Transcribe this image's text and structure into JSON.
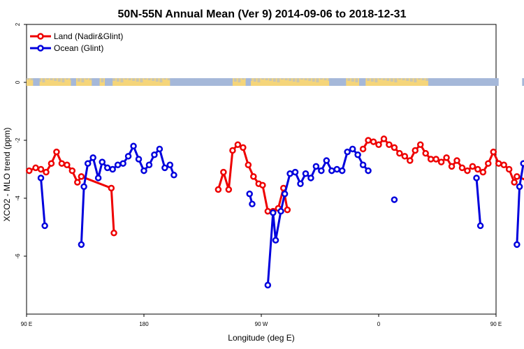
{
  "chart_data": {
    "type": "line",
    "title": "50N-55N Annual Mean (Ver 9)   2014-09-06 to 2018-12-31",
    "xlabel": "Longitude (deg E)",
    "ylabel": "XCO2 - MLO trend (ppm)",
    "xlim": [
      90,
      450
    ],
    "ylim": [
      -8,
      2
    ],
    "x_ticks": [
      {
        "value": 90,
        "label": "90 E"
      },
      {
        "value": 180,
        "label": "180"
      },
      {
        "value": 270,
        "label": "90 W"
      },
      {
        "value": 360,
        "label": "0"
      },
      {
        "value": 450,
        "label": "90 E"
      },
      {
        "value": 540,
        "label": "180"
      }
    ],
    "y_ticks": [
      {
        "value": 2,
        "label": "2"
      },
      {
        "value": 0,
        "label": "0"
      },
      {
        "value": -2,
        "label": "-2"
      },
      {
        "value": -4,
        "label": "-4"
      },
      {
        "value": -6,
        "label": "-6"
      }
    ],
    "legend_position": "top-left",
    "land_band_colors": {
      "land": "#f5d57a",
      "ocean": "#a5b8d9"
    },
    "series": [
      {
        "name": "Land (Nadir&Glint)",
        "color": "#ee0000",
        "segments": [
          [
            [
              92,
              -3.05
            ],
            [
              97,
              -2.95
            ],
            [
              101,
              -3.0
            ],
            [
              105,
              -3.1
            ],
            [
              109,
              -2.8
            ],
            [
              113,
              -2.4
            ],
            [
              117,
              -2.8
            ],
            [
              121,
              -2.85
            ],
            [
              125,
              -3.05
            ],
            [
              129,
              -3.45
            ],
            [
              132,
              -3.25
            ],
            [
              155,
              -3.65
            ],
            [
              157,
              -5.2
            ]
          ],
          [
            [
              237,
              -3.7
            ],
            [
              241,
              -3.1
            ],
            [
              245,
              -3.7
            ],
            [
              248,
              -2.35
            ],
            [
              252,
              -2.15
            ],
            [
              256,
              -2.25
            ],
            [
              260,
              -2.85
            ],
            [
              264,
              -3.25
            ],
            [
              268,
              -3.5
            ],
            [
              271,
              -3.55
            ],
            [
              275,
              -4.45
            ],
            [
              279,
              -4.45
            ],
            [
              283,
              -4.35
            ],
            [
              287,
              -3.65
            ],
            [
              290,
              -4.4
            ]
          ],
          [
            [
              348,
              -2.3
            ],
            [
              352,
              -2.0
            ],
            [
              356,
              -2.05
            ],
            [
              360,
              -2.15
            ],
            [
              364,
              -1.95
            ],
            [
              368,
              -2.15
            ],
            [
              372,
              -2.25
            ],
            [
              376,
              -2.45
            ],
            [
              380,
              -2.55
            ],
            [
              384,
              -2.7
            ],
            [
              388,
              -2.35
            ],
            [
              392,
              -2.15
            ],
            [
              396,
              -2.45
            ],
            [
              400,
              -2.65
            ],
            [
              404,
              -2.65
            ],
            [
              408,
              -2.75
            ],
            [
              412,
              -2.6
            ],
            [
              416,
              -2.9
            ],
            [
              420,
              -2.7
            ],
            [
              424,
              -2.95
            ],
            [
              428,
              -3.05
            ],
            [
              432,
              -2.9
            ],
            [
              436,
              -3.0
            ],
            [
              440,
              -3.1
            ],
            [
              444,
              -2.8
            ],
            [
              448,
              -2.4
            ],
            [
              452,
              -2.8
            ],
            [
              456,
              -2.85
            ],
            [
              460,
              -3.0
            ],
            [
              464,
              -3.45
            ],
            [
              466,
              -3.25
            ],
            [
              489,
              -3.65
            ],
            [
              491,
              -5.2
            ]
          ]
        ]
      },
      {
        "name": "Ocean (Glint)",
        "color": "#0000dd",
        "segments": [
          [
            [
              101,
              -3.3
            ],
            [
              104,
              -4.95
            ]
          ],
          [
            [
              132,
              -5.6
            ],
            [
              134,
              -3.6
            ],
            [
              137,
              -2.8
            ],
            [
              141,
              -2.6
            ],
            [
              145,
              -3.3
            ],
            [
              148,
              -2.75
            ],
            [
              152,
              -2.95
            ],
            [
              156,
              -3.0
            ],
            [
              160,
              -2.85
            ],
            [
              164,
              -2.8
            ],
            [
              168,
              -2.55
            ],
            [
              172,
              -2.2
            ],
            [
              176,
              -2.65
            ],
            [
              180,
              -3.05
            ],
            [
              184,
              -2.85
            ],
            [
              188,
              -2.5
            ],
            [
              192,
              -2.3
            ],
            [
              196,
              -2.95
            ],
            [
              200,
              -2.85
            ],
            [
              203,
              -3.2
            ]
          ],
          [
            [
              261,
              -3.85
            ],
            [
              263,
              -4.2
            ]
          ],
          [
            [
              275,
              -7.0
            ],
            [
              279,
              -4.5
            ],
            [
              281,
              -5.45
            ],
            [
              285,
              -4.45
            ],
            [
              288,
              -3.85
            ],
            [
              292,
              -3.15
            ],
            [
              296,
              -3.1
            ],
            [
              300,
              -3.5
            ],
            [
              304,
              -3.15
            ],
            [
              308,
              -3.3
            ],
            [
              312,
              -2.9
            ],
            [
              316,
              -3.05
            ],
            [
              320,
              -2.7
            ],
            [
              324,
              -3.05
            ],
            [
              328,
              -3.0
            ],
            [
              332,
              -3.05
            ],
            [
              336,
              -2.4
            ],
            [
              340,
              -2.3
            ],
            [
              344,
              -2.5
            ],
            [
              348,
              -2.85
            ],
            [
              352,
              -3.05
            ]
          ],
          [
            [
              372,
              -4.05
            ]
          ],
          [
            [
              435,
              -3.3
            ],
            [
              438,
              -4.95
            ]
          ],
          [
            [
              466,
              -5.6
            ],
            [
              468,
              -3.6
            ],
            [
              471,
              -2.8
            ],
            [
              475,
              -2.6
            ],
            [
              479,
              -3.3
            ],
            [
              482,
              -2.75
            ],
            [
              486,
              -2.95
            ],
            [
              490,
              -3.0
            ],
            [
              493,
              -2.85
            ]
          ]
        ]
      }
    ]
  }
}
